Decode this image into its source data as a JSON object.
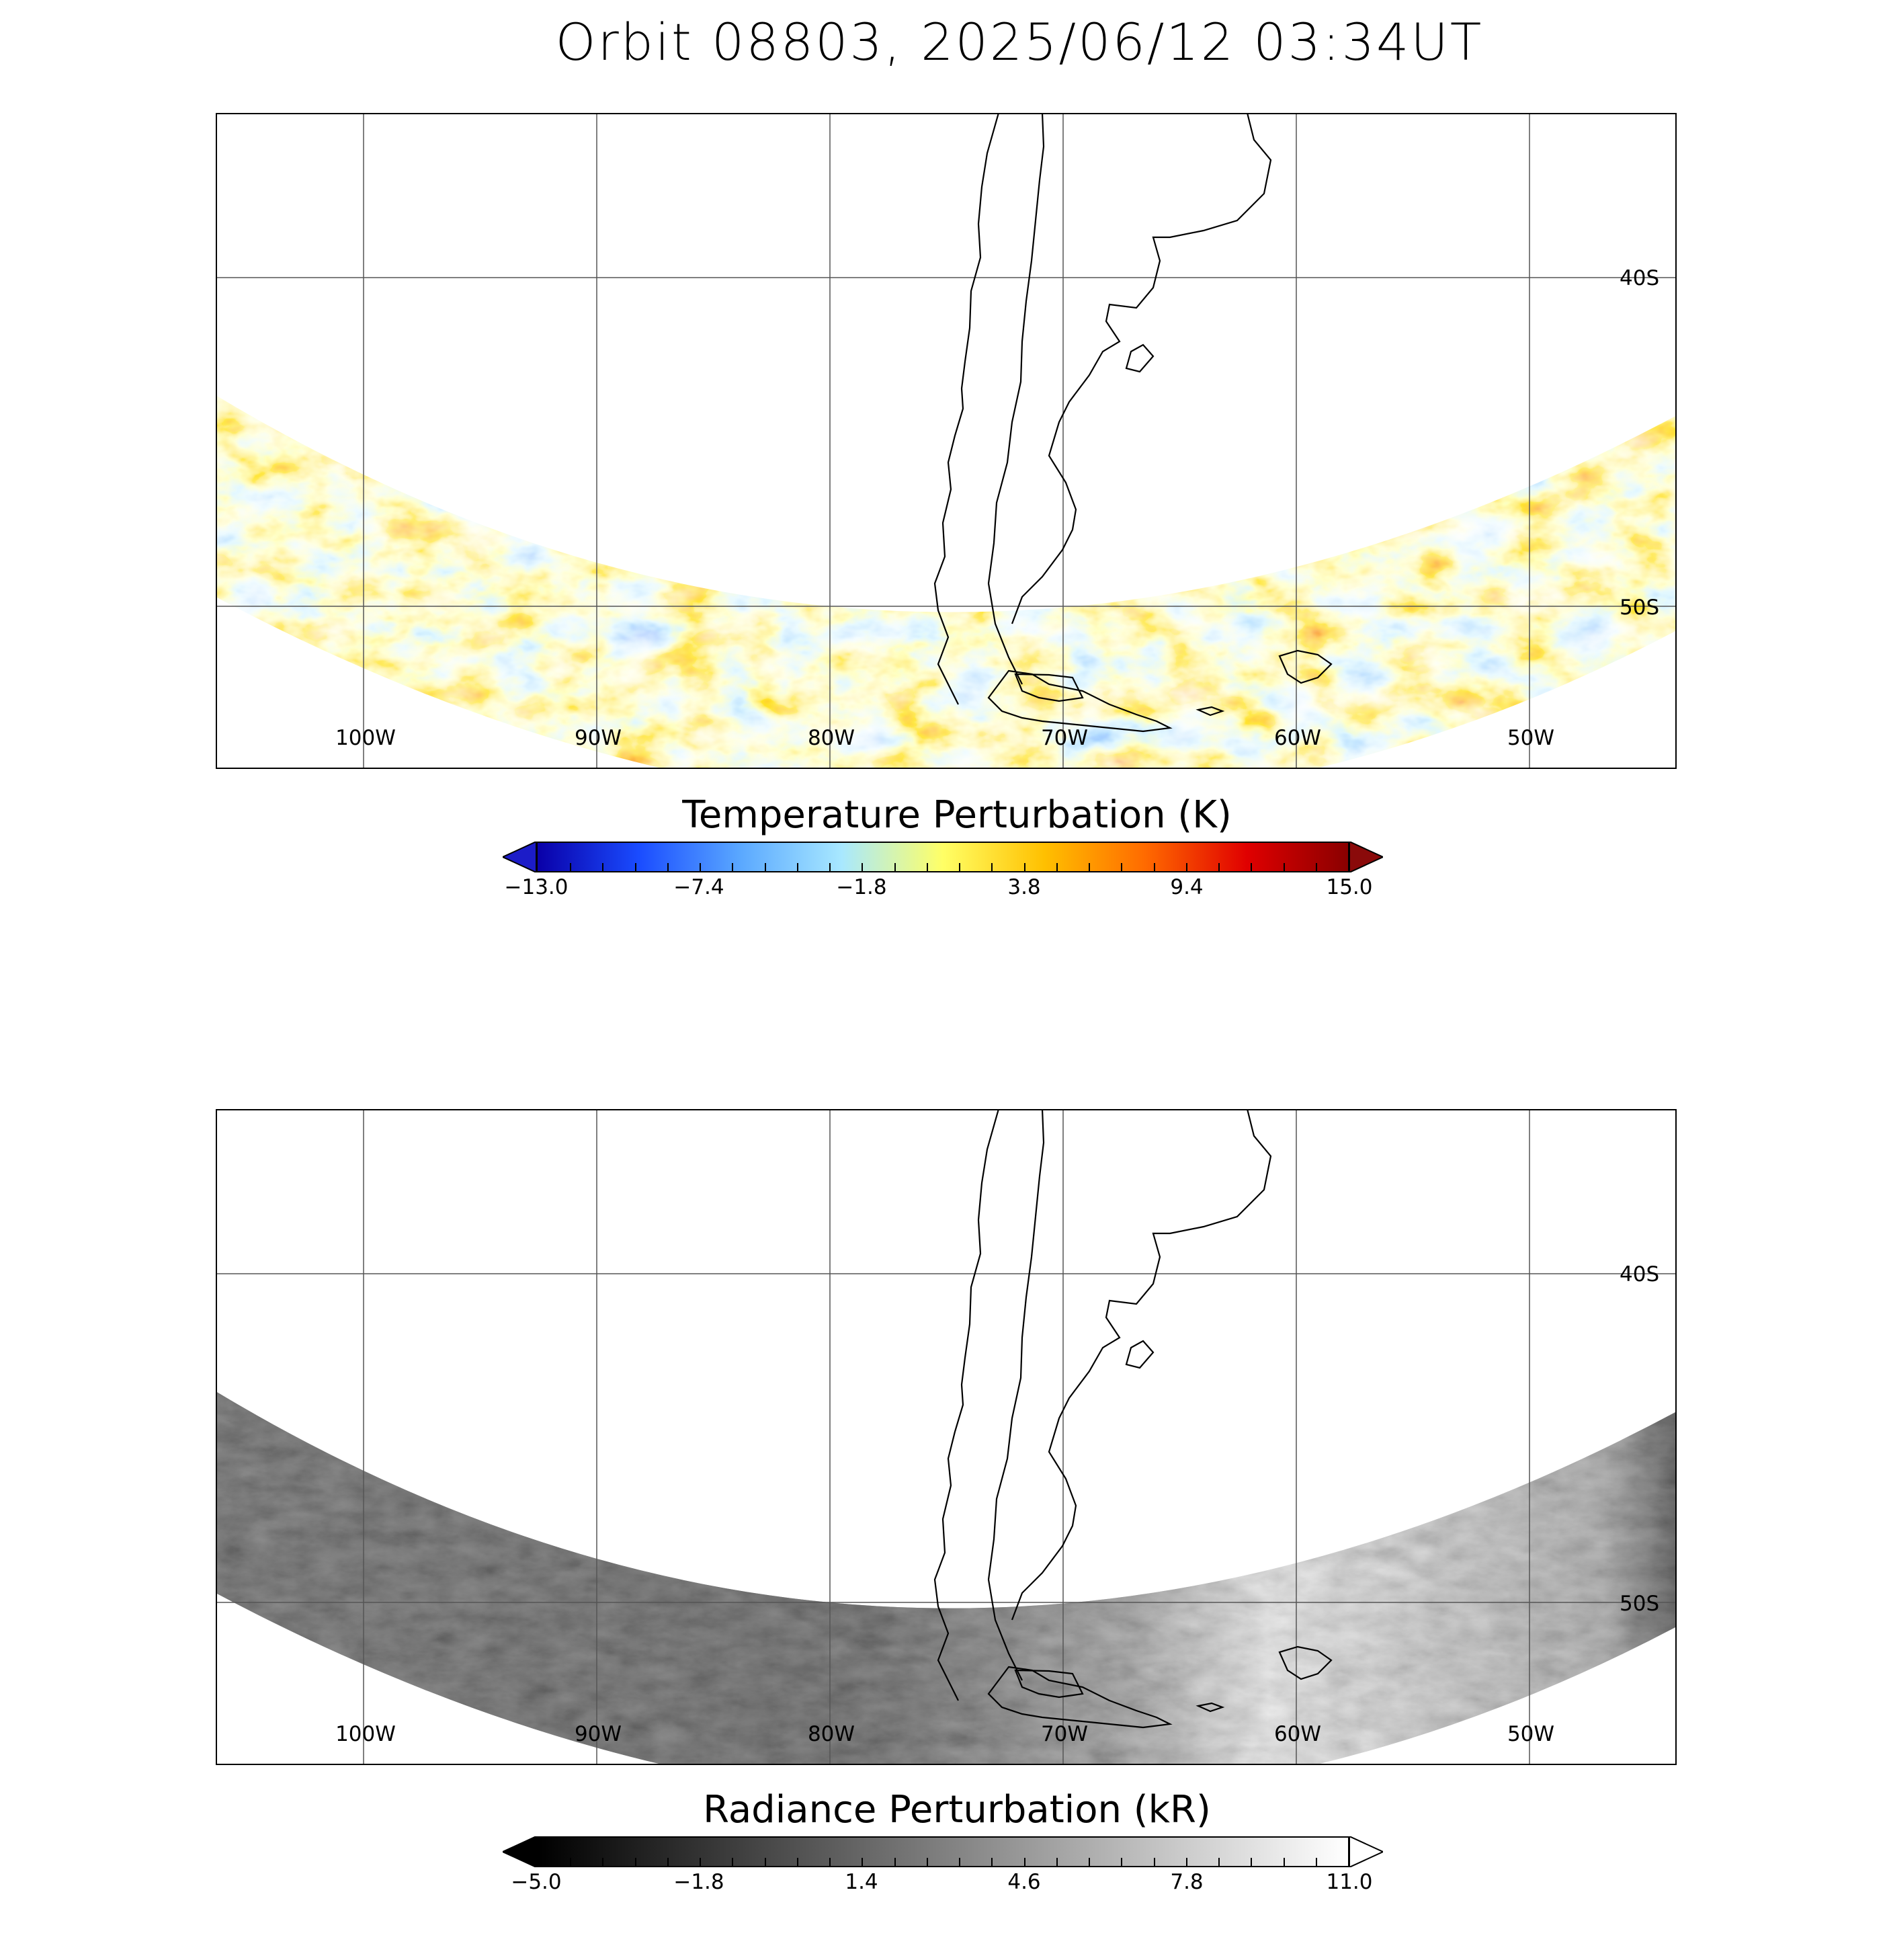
{
  "title": "Orbit 08803, 2025/06/12 03:34UT",
  "map": {
    "longitude_labels": [
      "100W",
      "90W",
      "80W",
      "70W",
      "60W",
      "50W"
    ],
    "latitude_labels": [
      "40S",
      "50S"
    ]
  },
  "top_panel": {
    "colorbar_title": "Temperature Perturbation (K)",
    "colorbar_ticks": [
      "−13.0",
      "−7.4",
      "−1.8",
      "3.8",
      "9.4",
      "15.0"
    ],
    "colormap": [
      "#0a00a8",
      "#1a4cff",
      "#5aa8ff",
      "#a8e8ff",
      "#ffff66",
      "#ffc000",
      "#ff6a00",
      "#e00000",
      "#8a0000"
    ],
    "under_color": "#1c1cc8",
    "over_color": "#8a0a0a"
  },
  "bottom_panel": {
    "colorbar_title": "Radiance Perturbation (kR)",
    "colorbar_ticks": [
      "−5.0",
      "−1.8",
      "1.4",
      "4.6",
      "7.8",
      "11.0"
    ],
    "colormap": [
      "#000000",
      "#ffffff"
    ],
    "under_color": "#000000",
    "over_color": "#ffffff"
  }
}
